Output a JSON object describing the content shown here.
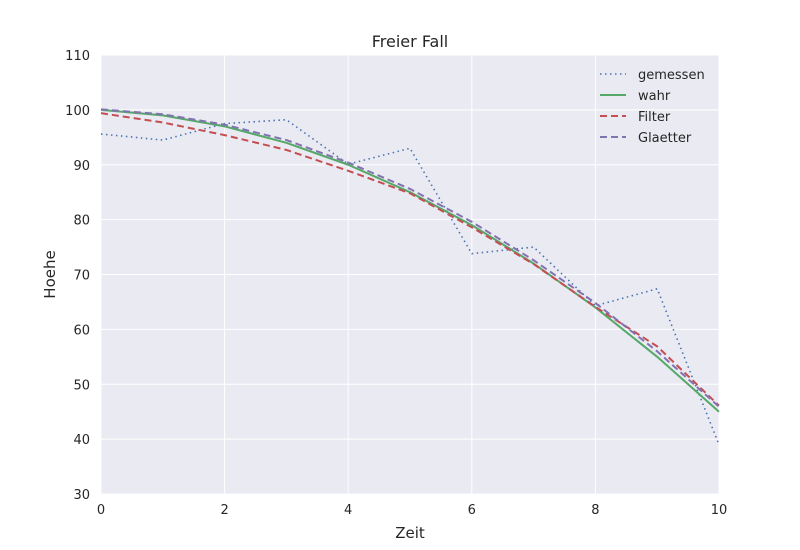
{
  "chart_data": {
    "type": "line",
    "title": "Freier Fall",
    "xlabel": "Zeit",
    "ylabel": "Hoehe",
    "xlim": [
      0,
      10
    ],
    "ylim": [
      30,
      110
    ],
    "xticks": [
      "0",
      "2",
      "4",
      "6",
      "8",
      "10"
    ],
    "yticks": [
      "30",
      "40",
      "50",
      "60",
      "70",
      "80",
      "90",
      "100",
      "110"
    ],
    "grid": true,
    "legend_position": "top-right",
    "x": [
      0,
      1,
      2,
      3,
      4,
      5,
      6,
      7,
      8,
      9,
      10
    ],
    "series": [
      {
        "name": "gemessen",
        "color": "#4c72b0",
        "style": "dotted",
        "values": [
          95.6,
          94.5,
          97.5,
          98.2,
          90.1,
          93.0,
          73.8,
          75.0,
          64.3,
          67.4,
          39.0
        ]
      },
      {
        "name": "wahr",
        "color": "#55a868",
        "style": "solid",
        "values": [
          100.0,
          99.0,
          97.0,
          94.0,
          90.0,
          85.0,
          79.0,
          72.0,
          64.0,
          55.0,
          45.0
        ]
      },
      {
        "name": "Filter",
        "color": "#c44e52",
        "style": "dashed",
        "values": [
          99.4,
          97.7,
          95.4,
          92.7,
          88.9,
          84.8,
          78.6,
          71.9,
          64.1,
          56.9,
          46.1
        ]
      },
      {
        "name": "Glaetter",
        "color": "#8172b2",
        "style": "dashed",
        "values": [
          100.1,
          99.2,
          97.3,
          94.5,
          90.4,
          85.6,
          79.6,
          72.6,
          64.8,
          56.0,
          45.9
        ]
      }
    ]
  }
}
